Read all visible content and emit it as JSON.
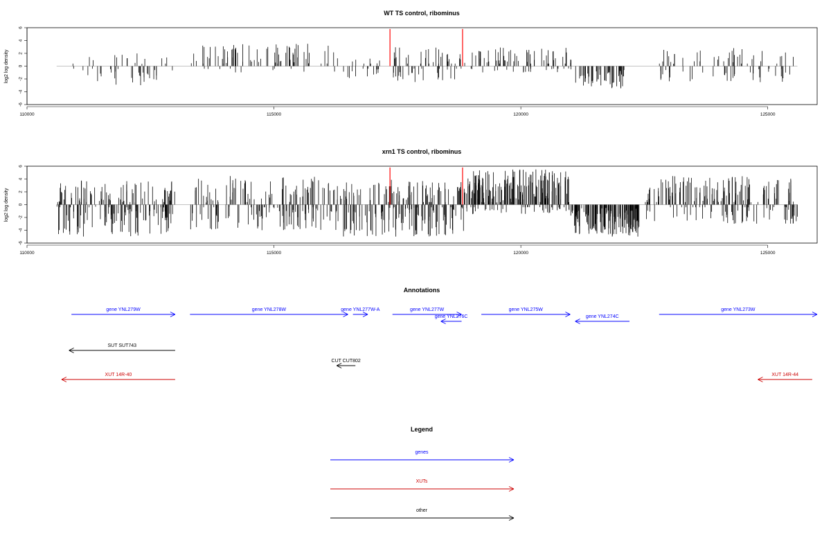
{
  "colors": {
    "genes": "#0000ff",
    "xuts": "#cc0000",
    "other": "#000000",
    "marker": "#ff0000",
    "bars": "#000000"
  },
  "chart_data": [
    {
      "type": "bar",
      "title": "WT TS control, ribominus",
      "ylabel": "log2 log density",
      "xlim": [
        110000,
        126000
      ],
      "ylim": [
        -6,
        6
      ],
      "x_ticks": [
        "110000",
        "115000",
        "120000",
        "125000"
      ],
      "y_ticks": [
        "-6",
        "-4",
        "-2",
        "0",
        "2",
        "4",
        "6"
      ],
      "baseline_range": [
        110600,
        125600
      ],
      "markers_x": [
        117350,
        118820
      ],
      "marker_height": 5.8,
      "regions": [
        {
          "from": 110900,
          "to": 113000,
          "lo": -3,
          "hi": 2,
          "n": 45
        },
        {
          "from": 113300,
          "to": 116300,
          "lo": -1,
          "hi": 3.5,
          "n": 80
        },
        {
          "from": 116350,
          "to": 117300,
          "lo": -2,
          "hi": 1.5,
          "n": 20
        },
        {
          "from": 117400,
          "to": 118800,
          "lo": -2.5,
          "hi": 3,
          "n": 55
        },
        {
          "from": 118850,
          "to": 121100,
          "lo": -1,
          "hi": 3,
          "n": 75
        },
        {
          "from": 121100,
          "to": 122100,
          "lo": -3.5,
          "hi": -0.5,
          "n": 55
        },
        {
          "from": 122800,
          "to": 125600,
          "lo": -2.5,
          "hi": 3,
          "n": 75
        }
      ]
    },
    {
      "type": "bar",
      "title": "xrn1 TS control, ribominus",
      "ylabel": "log2 log density",
      "xlim": [
        110000,
        126000
      ],
      "ylim": [
        -6,
        6
      ],
      "x_ticks": [
        "110000",
        "115000",
        "120000",
        "125000"
      ],
      "y_ticks": [
        "-6",
        "-4",
        "-2",
        "0",
        "2",
        "4",
        "6"
      ],
      "baseline_range": [
        110600,
        125600
      ],
      "markers_x": [
        117350,
        118820
      ],
      "marker_height": 5.8,
      "regions": [
        {
          "from": 110600,
          "to": 113000,
          "lo": -5,
          "hi": 4,
          "n": 180
        },
        {
          "from": 113300,
          "to": 116300,
          "lo": -4,
          "hi": 4.5,
          "n": 170
        },
        {
          "from": 116300,
          "to": 117300,
          "lo": -5,
          "hi": 3.5,
          "n": 60
        },
        {
          "from": 117300,
          "to": 118900,
          "lo": -5,
          "hi": 4,
          "n": 130
        },
        {
          "from": 118900,
          "to": 121000,
          "lo": -1.5,
          "hi": 5.5,
          "n": 210
        },
        {
          "from": 121000,
          "to": 122400,
          "lo": -5,
          "hi": -0.5,
          "n": 150
        },
        {
          "from": 122500,
          "to": 125600,
          "lo": -3,
          "hi": 4.5,
          "n": 190
        }
      ]
    }
  ],
  "annotations": {
    "title": "Annotations",
    "items": [
      {
        "label": "gene YNL279W",
        "type": "genes",
        "from": 110900,
        "to": 113000,
        "dir": "right",
        "row": 0
      },
      {
        "label": "gene YNL278W",
        "type": "genes",
        "from": 113300,
        "to": 116500,
        "dir": "right",
        "row": 0
      },
      {
        "label": "gene YNL277W-A",
        "type": "genes",
        "from": 116600,
        "to": 116900,
        "dir": "right",
        "row": 0
      },
      {
        "label": "gene YNL277W",
        "type": "genes",
        "from": 117400,
        "to": 118800,
        "dir": "right",
        "row": 0
      },
      {
        "label": "gene YNL276C",
        "type": "genes",
        "from": 118380,
        "to": 118800,
        "dir": "left",
        "row": 1
      },
      {
        "label": "gene YNL275W",
        "type": "genes",
        "from": 119200,
        "to": 121000,
        "dir": "right",
        "row": 0
      },
      {
        "label": "gene YNL274C",
        "type": "genes",
        "from": 121100,
        "to": 122200,
        "dir": "left",
        "row": 1
      },
      {
        "label": "gene YNL273W",
        "type": "genes",
        "from": 122800,
        "to": 126000,
        "dir": "right",
        "row": 0
      },
      {
        "label": "SUT SUT743",
        "type": "other",
        "from": 110850,
        "to": 113000,
        "dir": "left",
        "row": 2
      },
      {
        "label": "CUT CUT802",
        "type": "other",
        "from": 116270,
        "to": 116650,
        "dir": "left",
        "row": 3
      },
      {
        "label": "XUT 14R-40",
        "type": "xuts",
        "from": 110700,
        "to": 113000,
        "dir": "left",
        "row": 4
      },
      {
        "label": "XUT 14R-44",
        "type": "xuts",
        "from": 124800,
        "to": 125900,
        "dir": "left",
        "row": 4
      }
    ]
  },
  "legend": {
    "title": "Legend",
    "items": [
      {
        "label": "genes",
        "type": "genes"
      },
      {
        "label": "XUTs",
        "type": "xuts"
      },
      {
        "label": "other",
        "type": "other"
      }
    ]
  }
}
